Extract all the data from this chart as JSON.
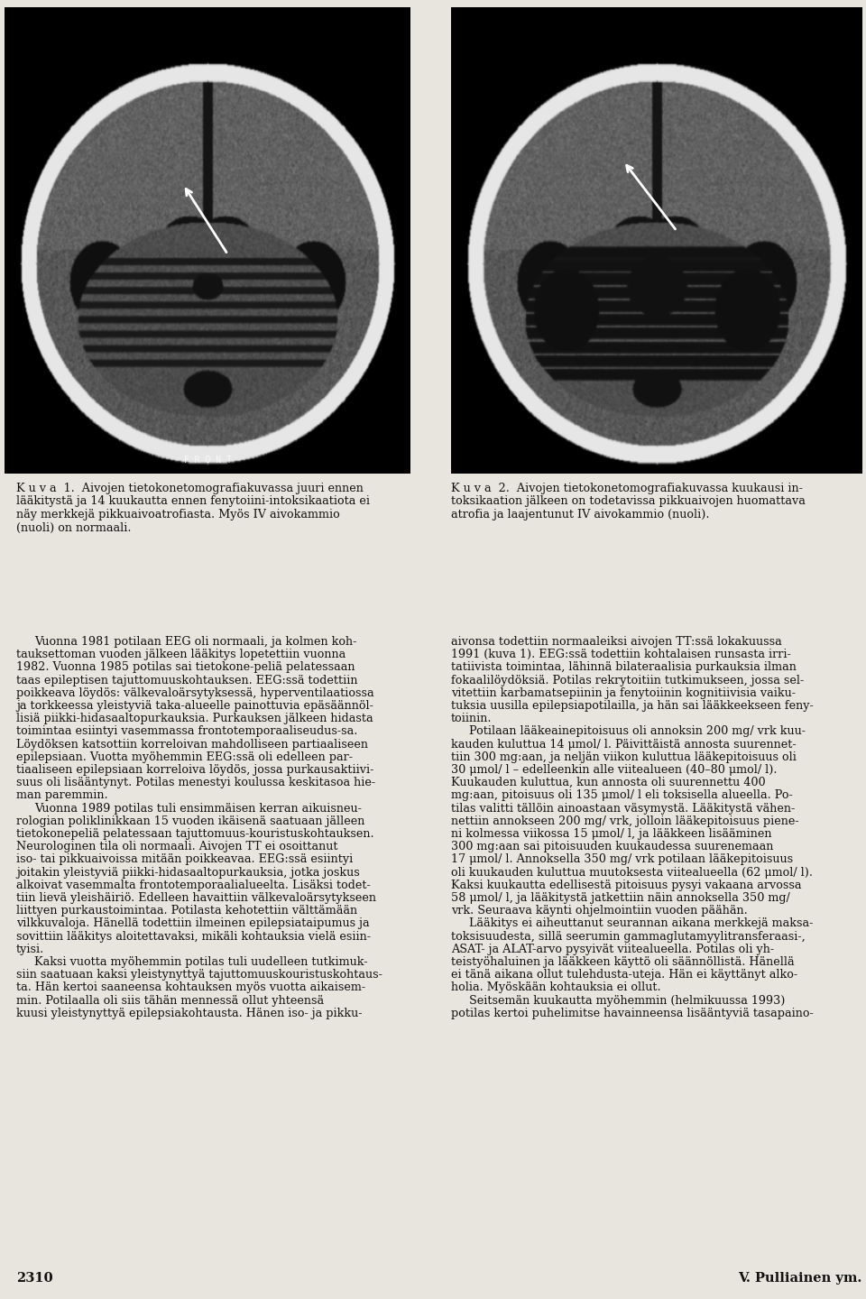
{
  "bg_color": "#e8e4de",
  "text_color": "#111111",
  "page_number_left": "2310",
  "page_number_right": "V. Pulliainen ym.",
  "caption1_lines": [
    "K u v a  1.  Aivojen tietokonetomografiakuvassa juuri ennen",
    "lääkitystä ja 14 kuukautta ennen fenytoiini-intoksikaatiota ei",
    "näy merkkejä pikkuaivoatrofiasta. Myös IV aivokammio",
    "(nuoli) on normaali."
  ],
  "caption2_lines": [
    "K u v a  2.  Aivojen tietokonetomografiakuvassa kuukausi in-",
    "toksikaation jälkeen on todetavissa pikkuaivojen huomattava",
    "atrofia ja laajentunut IV aivokammio (nuoli)."
  ],
  "left_col": [
    [
      "i",
      "Vuonna 1981 potilaan EEG oli normaali, ja kolmen koh-"
    ],
    [
      "c",
      "tauksettoman vuoden jälkeen lääkitys lopetettiin vuonna"
    ],
    [
      "c",
      "1982. Vuonna 1985 potilas sai tietokone­peliä pelatessaan"
    ],
    [
      "c",
      "taas epileptisen tajuttomuuskohtauksen. EEG:ssä todettiin"
    ],
    [
      "c",
      "poikkeava löydös: välkevaloärsytyksessä, hyperventilaatiossa"
    ],
    [
      "c",
      "ja torkkeessa yleistyviä taka-alueelle painottuvia epäsäännöl-"
    ],
    [
      "c",
      "lisiä piikki-hidasaaltopurkauksia. Purkauksen jälkeen hidasta"
    ],
    [
      "c",
      "toimintaa esiintyi vasemmassa frontotemporaaliseudus­sa."
    ],
    [
      "c",
      "Löydöksen katsottiin korreloivan mahdolliseen partiaaliseen"
    ],
    [
      "c",
      "epilepsiaan. Vuotta myöhemmin EEG:ssä oli edelleen par-"
    ],
    [
      "c",
      "tiaaliseen epilepsiaan korreloiva löydös, jossa purkausaktiivi-"
    ],
    [
      "c",
      "suus oli lisääntynyt. Potilas menestyi koulussa keskitasoa hie-"
    ],
    [
      "c",
      "man paremmin."
    ],
    [
      "i",
      "Vuonna 1989 potilas tuli ensimmäisen kerran aikuisneu-"
    ],
    [
      "c",
      "rologian poliklinikkaan 15 vuoden ikäisenä saatuaan jälleen"
    ],
    [
      "c",
      "tietokonepeliä pelatessaan tajuttomuus-kouristuskohtauksen."
    ],
    [
      "c",
      "Neurologinen tila oli normaali. Aivojen TT ei osoittanut"
    ],
    [
      "c",
      "iso- tai pikkuaivoissa mitään poikkeavaa. EEG:ssä esiintyi"
    ],
    [
      "c",
      "joitakin yleistyviä piikki-hidasaaltopurkauksia, jotka joskus"
    ],
    [
      "c",
      "alkoivat vasemmalta frontotemporaalialueelta. Lisäksi todet-"
    ],
    [
      "c",
      "tiin lievä yleishäiriö. Edelleen havaittiin välkevaloärsytykseen"
    ],
    [
      "c",
      "liittyen purkaustoimintaa. Potilasta kehotettiin välttämään"
    ],
    [
      "c",
      "vilkkuvaloja. Hänellä todettiin ilmeinen epilepsiataipumus ja"
    ],
    [
      "c",
      "sovittiin lääkitys aloitettavaksi, mikäli kohtauksia vielä esiin-"
    ],
    [
      "c",
      "tyisi."
    ],
    [
      "i",
      "Kaksi vuotta myöhemmin potilas tuli uudelleen tutkimuk-"
    ],
    [
      "c",
      "siin saatuaan kaksi yleistynyttyä tajuttomuuskouristuskohtaus-"
    ],
    [
      "c",
      "ta. Hän kertoi saaneensa kohtauksen myös vuotta aikaisem-"
    ],
    [
      "c",
      "min. Potilaalla oli siis tähän mennessä ollut yhteensä"
    ],
    [
      "c",
      "kuusi yleistynyttyä epilepsiakohtausta. Hänen iso- ja pikku-"
    ]
  ],
  "right_col": [
    [
      "c",
      "aivonsa todettiin normaaleiksi aivojen TT:ssä lokakuussa"
    ],
    [
      "c",
      "1991 (kuva 1). EEG:ssä todettiin kohtalaisen runsasta irri-"
    ],
    [
      "c",
      "tatiivista toimintaa, lähinnä bilateraalisia purkauksia ilman"
    ],
    [
      "c",
      "fokaalilöydöksiä. Potilas rekrytoitiin tutkimukseen, jossa sel-"
    ],
    [
      "c",
      "vitettiin karbamatsepiinin ja fenytoiinin kognitiivisia vaiku-"
    ],
    [
      "c",
      "tuksia uusilla epilepsiapotilailla, ja hän sai lääkkeekseen feny-"
    ],
    [
      "c",
      "toiinin."
    ],
    [
      "i",
      "Potilaan lääkeainepitoisuus oli annoksin 200 mg/ vrk kuu-"
    ],
    [
      "c",
      "kauden kuluttua 14 μmol/ l. Päivittäistä annosta suurennet-"
    ],
    [
      "c",
      "tiin 300 mg:aan, ja neljän viikon kuluttua lääkepitoisuus oli"
    ],
    [
      "c",
      "30 μmol/ l – edelleenkin alle viitealueen (40–80 μmol/ l)."
    ],
    [
      "c",
      "Kuukauden kuluttua, kun annosta oli suurennettu 400"
    ],
    [
      "c",
      "mg:aan, pitoisuus oli 135 μmol/ l eli toksisella alueella. Po-"
    ],
    [
      "c",
      "tilas valitti tällöin ainoastaan väsymystä. Lääkitystä vähen-"
    ],
    [
      "c",
      "nettiin annokseen 200 mg/ vrk, jolloin lääkepitoisuus piene-"
    ],
    [
      "c",
      "ni kolmessa viikossa 15 μmol/ l, ja lääkkeen lisääminen"
    ],
    [
      "c",
      "300 mg:aan sai pitoisuuden kuukaudessa suurenemaan"
    ],
    [
      "c",
      "17 μmol/ l. Annoksella 350 mg/ vrk potilaan lääkepitoisuus"
    ],
    [
      "c",
      "oli kuukauden kuluttua muutoksesta viitealueella (62 μmol/ l)."
    ],
    [
      "c",
      "Kaksi kuukautta edellisestä pitoisuus pysyi vakaana arvossa"
    ],
    [
      "c",
      "58 μmol/ l, ja lääkitystä jatkettiin näin annoksella 350 mg/"
    ],
    [
      "c",
      "vrk. Seuraava käynti ohjelmointiin vuoden päähän."
    ],
    [
      "i",
      "Lääkitys ei aiheuttanut seurannan aikana merkkejä maksa-"
    ],
    [
      "c",
      "toksisuudesta, sillä seerumin gammaglutamyylitransferaasi-,"
    ],
    [
      "c",
      "ASAT- ja ALAT-arvo pysyivät viitealueella. Potilas oli yh-"
    ],
    [
      "c",
      "teistyöhaluinen ja lääkkeen käyttö oli säännöllistä. Hänellä"
    ],
    [
      "c",
      "ei tänä aikana ollut tulehdusta­uteja. Hän ei käyttänyt alko-"
    ],
    [
      "c",
      "holia. Myöskään kohtauksia ei ollut."
    ],
    [
      "i",
      "Seitsemän kuukautta myöhemmin (helmikuussa 1993)"
    ],
    [
      "c",
      "potilas kertoi puhelimitse havainneensa lisääntyviä tasapaino-"
    ]
  ]
}
